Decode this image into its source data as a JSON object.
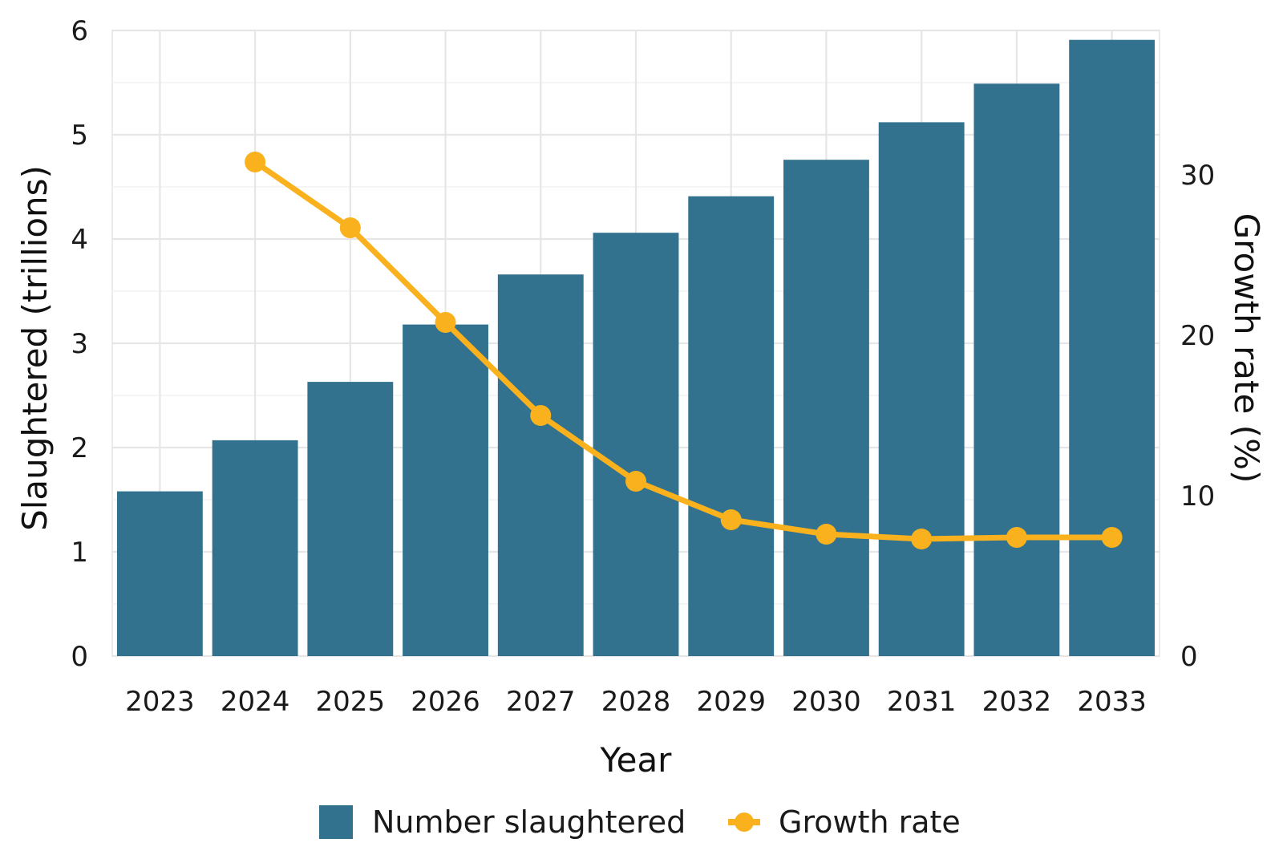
{
  "chart_data": {
    "type": "bar",
    "categories": [
      "2023",
      "2024",
      "2025",
      "2026",
      "2027",
      "2028",
      "2029",
      "2030",
      "2031",
      "2032",
      "2033"
    ],
    "series": [
      {
        "name": "Number slaughtered",
        "type": "bar",
        "axis": "left",
        "values": [
          1.58,
          2.07,
          2.63,
          3.18,
          3.66,
          4.06,
          4.41,
          4.76,
          5.12,
          5.49,
          5.91
        ]
      },
      {
        "name": "Growth rate",
        "type": "line",
        "axis": "right",
        "values": [
          null,
          30.8,
          26.7,
          20.8,
          15.0,
          10.9,
          8.5,
          7.6,
          7.3,
          7.4,
          7.4
        ]
      }
    ],
    "xlabel": "Year",
    "ylabel": "Slaughtered (trillions)",
    "ylabel_right": "Growth rate (%)",
    "ylim": [
      0,
      6
    ],
    "yticks": [
      0,
      1,
      2,
      3,
      4,
      5,
      6
    ],
    "ylim_right": [
      0,
      39
    ],
    "yticks_right": [
      0,
      10,
      20,
      30
    ],
    "grid": true,
    "legend_position": "bottom",
    "colors": {
      "bars": "#33728f",
      "line": "#f9b11e",
      "grid": "#ebebeb"
    }
  }
}
